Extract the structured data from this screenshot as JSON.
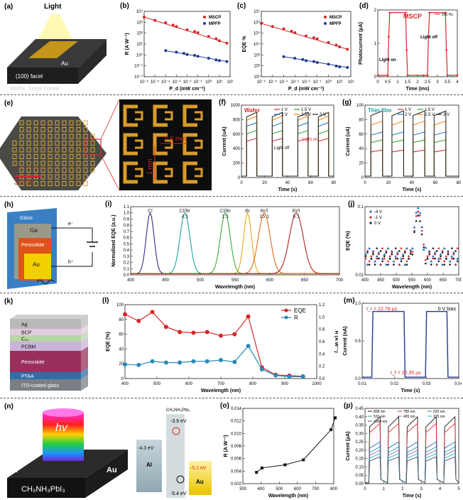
{
  "panels": {
    "a": {
      "label": "(a)",
      "light": "Light",
      "facet": "(100) facet",
      "au": "Au",
      "crystal": "MAPbI₃ Single Crystal"
    },
    "b": {
      "label": "(b)"
    },
    "c": {
      "label": "(c)"
    },
    "d": {
      "label": "(d)"
    },
    "e": {
      "label": "(e)",
      "scale1": "3 mm",
      "scale2": "0.6 mm",
      "scale3": "1 mm"
    },
    "f": {
      "label": "(f)"
    },
    "g": {
      "label": "(g)"
    },
    "h": {
      "label": "(h)",
      "glass": "Glass",
      "ga": "Ga",
      "perovskite": "Perovskite",
      "au": "Au",
      "electron": "e⁻",
      "hole": "h⁺"
    },
    "i": {
      "label": "(i)"
    },
    "j": {
      "label": "(j)"
    },
    "k": {
      "label": "(k)",
      "layers": [
        "Ag",
        "BCP",
        "C₆₀",
        "PCBM",
        "Perovskite",
        "PTAA",
        "ITO-coated glass"
      ]
    },
    "l": {
      "label": "(l)"
    },
    "m": {
      "label": "(m)"
    },
    "n": {
      "label": "(n)",
      "hv": "hv",
      "al": "Al",
      "au": "Au",
      "material": "CH₃NH₃PbI₃",
      "levels": {
        "top_material": "CH₃NH₃PbI₃",
        "cb": "-3.9 eV",
        "al": "-4.3 eV",
        "au": "-5.1 eV",
        "vb": "-5.4 eV",
        "al_label": "Al",
        "au_label": "Au"
      }
    },
    "o": {
      "label": "(o)"
    },
    "p": {
      "label": "(p)"
    }
  },
  "chart_data": [
    {
      "id": "b",
      "type": "scatter",
      "xlabel": "P_d (mW cm⁻²)",
      "ylabel": "R (A W⁻¹)",
      "xscale": "log",
      "yscale": "log",
      "xlim": [
        1e-06,
        100.0
      ],
      "ylim": [
        0.01,
        10000.0
      ],
      "xticks": [
        "10⁻⁶",
        "10⁻⁵",
        "10⁻⁴",
        "10⁻³",
        "10⁻²",
        "10⁻¹",
        "10⁰",
        "10¹",
        "10²"
      ],
      "yticks": [
        "10⁻²",
        "10⁻¹",
        "10⁰",
        "10¹",
        "10²",
        "10³",
        "10⁴"
      ],
      "series": [
        {
          "name": "MSCP",
          "color": "#d62728",
          "x": [
            1e-06,
            1e-05,
            0.0001,
            0.0005,
            0.001,
            0.01,
            0.05,
            0.1,
            1,
            5,
            10,
            50
          ],
          "y": [
            3000,
            1500,
            900,
            550,
            400,
            200,
            140,
            110,
            50,
            30,
            20,
            12
          ]
        },
        {
          "name": "MPFP",
          "color": "#1f3b8f",
          "x": [
            0.0001,
            0.001,
            0.005,
            0.01,
            0.05,
            0.1,
            1,
            5,
            10,
            50
          ],
          "y": [
            2.5,
            1.8,
            1.4,
            1.1,
            0.9,
            0.75,
            0.5,
            0.35,
            0.3,
            0.25
          ]
        }
      ]
    },
    {
      "id": "c",
      "type": "scatter",
      "xlabel": "P_d (mW cm⁻²)",
      "ylabel": "EQE %",
      "xscale": "log",
      "yscale": "log",
      "xlim": [
        1e-06,
        100.0
      ],
      "ylim": [
        10.0,
        10000000.0
      ],
      "xticks": [
        "10⁻⁶",
        "10⁻⁵",
        "10⁻⁴",
        "10⁻³",
        "10⁻²",
        "10⁻¹",
        "10⁰",
        "10¹",
        "10²"
      ],
      "yticks": [
        "10¹",
        "10²",
        "10³",
        "10⁴",
        "10⁵",
        "10⁶",
        "10⁷"
      ],
      "series": [
        {
          "name": "MSCP",
          "color": "#d62728",
          "x": [
            1e-06,
            1e-05,
            0.0001,
            0.0005,
            0.001,
            0.01,
            0.05,
            0.1,
            1,
            5,
            10,
            50
          ],
          "y": [
            800000,
            400000,
            250000,
            150000,
            110000,
            55000,
            38000,
            30000,
            14000,
            8000,
            5500,
            3300
          ]
        },
        {
          "name": "MPFP",
          "color": "#1f3b8f",
          "x": [
            0.0001,
            0.001,
            0.005,
            0.01,
            0.05,
            0.1,
            1,
            5,
            10,
            50
          ],
          "y": [
            700,
            500,
            380,
            300,
            250,
            200,
            140,
            95,
            80,
            70
          ]
        }
      ]
    },
    {
      "id": "d",
      "type": "line",
      "title": "MSCP",
      "legend": "500 Hz",
      "xlabel": "Time (ms)",
      "ylabel": "Photocurrent (μA)",
      "xlim": [
        0,
        4
      ],
      "ylim": [
        0,
        2.5
      ],
      "xticks": [
        "0",
        "0.5",
        "1",
        "1.5",
        "2",
        "2.5",
        "3",
        "3.5",
        "4"
      ],
      "yticks": [
        "0",
        "1",
        "2"
      ],
      "annotations": [
        "Light on",
        "Light off"
      ],
      "series": [
        {
          "name": "500 Hz",
          "color": "#d62728",
          "x": [
            0,
            0.5,
            0.55,
            0.6,
            1.4,
            1.45,
            1.5,
            2.3,
            2.5,
            2.55,
            2.6,
            3.4,
            3.45,
            3.5,
            4
          ],
          "y": [
            0.05,
            0.05,
            1.5,
            2.4,
            2.4,
            1.0,
            0.05,
            0.05,
            0.05,
            1.5,
            2.4,
            2.4,
            1.0,
            0.05,
            0.05
          ]
        }
      ]
    },
    {
      "id": "f",
      "type": "line",
      "title": "Wafer",
      "xlabel": "Time (s)",
      "ylabel": "Current (uA)",
      "xlim": [
        0,
        90
      ],
      "ylim": [
        0,
        1000
      ],
      "xticks": [
        "0",
        "20",
        "40",
        "60",
        "80"
      ],
      "yticks": [
        "0",
        "200",
        "400",
        "600",
        "800",
        "1000"
      ],
      "annotations": [
        "Light off",
        "Light on"
      ],
      "series": [
        {
          "name": "1 V",
          "color": "#d62728",
          "level": 540
        },
        {
          "name": "1.5 V",
          "color": "#2ca02c",
          "level": 650
        },
        {
          "name": "2 V",
          "color": "#1f77b4",
          "level": 760
        },
        {
          "name": "2.5 V",
          "color": "#ff7f0e",
          "level": 850
        },
        {
          "name": "3 V",
          "color": "#222222",
          "level": 900
        }
      ],
      "on_intervals": [
        [
          5,
          15
        ],
        [
          30,
          40
        ],
        [
          55,
          65
        ],
        [
          75,
          85
        ]
      ]
    },
    {
      "id": "g",
      "type": "line",
      "title": "Thin film",
      "xlabel": "Time (s)",
      "ylabel": "Current (uA)",
      "xlim": [
        0,
        80
      ],
      "ylim": [
        0,
        100
      ],
      "xticks": [
        "0",
        "20",
        "40",
        "60",
        "80"
      ],
      "yticks": [
        "0",
        "20",
        "40",
        "60",
        "80",
        "100"
      ],
      "series": [
        {
          "name": "1 V",
          "color": "#d62728",
          "level": 38
        },
        {
          "name": "1.5 V",
          "color": "#2ca02c",
          "level": 52
        },
        {
          "name": "2 V",
          "color": "#1f77b4",
          "level": 63
        },
        {
          "name": "2.5 V",
          "color": "#ff7f0e",
          "level": 78
        },
        {
          "name": "3 V",
          "color": "#222222",
          "level": 92
        }
      ],
      "on_intervals": [
        [
          5,
          15
        ],
        [
          23,
          33
        ],
        [
          41,
          51
        ],
        [
          59,
          69
        ]
      ]
    },
    {
      "id": "i",
      "type": "line",
      "xlabel": "Wavelength (nm)",
      "ylabel": "Normalized EQE (a.u.)",
      "xlim": [
        400,
        700
      ],
      "ylim": [
        0,
        1.1
      ],
      "xticks": [
        "400",
        "450",
        "500",
        "550",
        "600",
        "650",
        "700"
      ],
      "yticks": [
        "0.0",
        "0.1",
        "0.2",
        "0.3",
        "0.4",
        "0.5",
        "0.6",
        "0.7",
        "0.8",
        "0.9",
        "1.0",
        "1.1"
      ],
      "series": [
        {
          "name": "Cl",
          "color": "#3b2a8f",
          "peak": 428,
          "width": 8
        },
        {
          "name": "Cl/Br\n4:1",
          "color": "#1aa3a3",
          "peak": 478,
          "width": 10
        },
        {
          "name": "Cl/Br\n1:1",
          "color": "#3aaa3a",
          "peak": 536,
          "width": 10
        },
        {
          "name": "Br",
          "color": "#e6a817",
          "peak": 568,
          "width": 8
        },
        {
          "name": "Br/I\n15:1",
          "color": "#e36b1b",
          "peak": 592,
          "width": 12
        },
        {
          "name": "Br/I\n6:1",
          "color": "#b3221e",
          "peak": 638,
          "width": 14
        }
      ]
    },
    {
      "id": "j",
      "type": "scatter",
      "xlabel": "Wavelength (nm)",
      "ylabel": "EQE (%)",
      "yscale": "log",
      "xlim": [
        400,
        700
      ],
      "ylim": [
        0.01,
        1
      ],
      "xticks": [
        "400",
        "450",
        "500",
        "550",
        "600",
        "650",
        "700"
      ],
      "yticks": [
        "0.01",
        "0.1"
      ],
      "series": [
        {
          "name": "-4 V",
          "color": "#2a6fbf",
          "peak": 570,
          "amp": 0.9
        },
        {
          "name": "-1 V",
          "color": "#d62728",
          "peak": 570,
          "amp": 0.7
        },
        {
          "name": "0 V",
          "color": "#222222",
          "peak": 570,
          "amp": 0.5
        }
      ]
    },
    {
      "id": "l",
      "type": "line",
      "xlabel": "Wavelength (nm)",
      "ylabel": "EQE (%)",
      "ylabel2": "R (A W⁻¹)",
      "xlim": [
        350,
        1050
      ],
      "ylim": [
        0,
        100
      ],
      "ylim2": [
        0,
        1.2
      ],
      "xticks": [
        "400",
        "500",
        "600",
        "700",
        "800",
        "900",
        "1000"
      ],
      "yticks": [
        "0",
        "20",
        "40",
        "60",
        "80",
        "100"
      ],
      "yticks2": [
        "0.0",
        "0.2",
        "0.4",
        "0.6",
        "0.8",
        "1.0",
        "1.2"
      ],
      "series": [
        {
          "name": "EQE",
          "color": "#d62728",
          "x": [
            350,
            400,
            450,
            500,
            550,
            600,
            650,
            700,
            750,
            800,
            850,
            900,
            950,
            1000
          ],
          "y": [
            87,
            78,
            90,
            70,
            63,
            62,
            63,
            58,
            60,
            84,
            15,
            5,
            4,
            3
          ]
        },
        {
          "name": "R",
          "color": "#2a8ab5",
          "x": [
            350,
            400,
            450,
            500,
            550,
            600,
            650,
            700,
            750,
            800,
            850,
            900,
            950,
            1000
          ],
          "y": [
            0.23,
            0.22,
            0.28,
            0.26,
            0.26,
            0.28,
            0.28,
            0.3,
            0.27,
            0.53,
            0.15,
            0.05,
            0.03,
            0.03
          ]
        }
      ]
    },
    {
      "id": "m",
      "type": "line",
      "xlabel": "Time (s)",
      "ylabel": "Current (nA)",
      "xlim": [
        0,
        0.045
      ],
      "ylim": [
        0,
        1.1
      ],
      "xticks": [
        "0.01",
        "0.02",
        "0.03",
        "0.04"
      ],
      "yticks": [
        "0.0",
        "0.5",
        "1.0"
      ],
      "annotations": [
        "t_r = 22.78 µs",
        "t_f = 20.35 µs",
        "0 V bias"
      ],
      "series": [
        {
          "name": "response",
          "color": "#1f3b8f",
          "x": [
            0,
            0.0045,
            0.005,
            0.0195,
            0.02,
            0.0295,
            0.03,
            0.0395,
            0.04,
            0.045
          ],
          "y": [
            0.02,
            0.02,
            0.98,
            0.98,
            0.02,
            0.02,
            0.98,
            0.98,
            0.02,
            0.02
          ]
        }
      ]
    },
    {
      "id": "o",
      "type": "line",
      "xlabel": "Wavelength (nm)",
      "ylabel": "R (A W⁻¹)",
      "xlim": [
        300,
        800
      ],
      "ylim": [
        0.002,
        0.014
      ],
      "xticks": [
        "300",
        "400",
        "500",
        "600",
        "700",
        "800"
      ],
      "yticks": [
        "0.002",
        "0.004",
        "0.006",
        "0.008",
        "0.010",
        "0.012",
        "0.014"
      ],
      "series": [
        {
          "name": "R",
          "color": "#111111",
          "x": [
            375,
            405,
            532,
            633,
            785,
            808
          ],
          "y": [
            0.0038,
            0.0045,
            0.005,
            0.0058,
            0.0106,
            0.0125
          ]
        }
      ]
    },
    {
      "id": "p",
      "type": "line",
      "xlabel": "Time (s)",
      "ylabel": "Current (μA)",
      "xlim": [
        0,
        5
      ],
      "ylim": [
        0,
        0.45
      ],
      "xticks": [
        "0",
        "1",
        "2",
        "3",
        "4",
        "5"
      ],
      "yticks": [
        "0.00",
        "0.05",
        "0.10",
        "0.15",
        "0.20",
        "0.25",
        "0.30",
        "0.35",
        "0.40",
        "0.45"
      ],
      "series": [
        {
          "name": "808 nm",
          "color": "#111111",
          "level": 0.4
        },
        {
          "name": "785 nm",
          "color": "#d62728",
          "level": 0.36
        },
        {
          "name": "633 nm",
          "color": "#1f77b4",
          "level": 0.25
        },
        {
          "name": "532 nm",
          "color": "#2a9d8f",
          "level": 0.22
        },
        {
          "name": "405 nm",
          "color": "#9467bd",
          "level": 0.2
        },
        {
          "name": "375 nm",
          "color": "#17becf",
          "level": 0.18
        },
        {
          "name": "1064 nm",
          "color": "#555555",
          "level": 0.16
        }
      ],
      "on_intervals": [
        [
          0.2,
          0.8
        ],
        [
          1.2,
          1.8
        ],
        [
          2.2,
          2.8
        ],
        [
          3.2,
          3.8
        ],
        [
          4.2,
          4.8
        ]
      ]
    }
  ]
}
